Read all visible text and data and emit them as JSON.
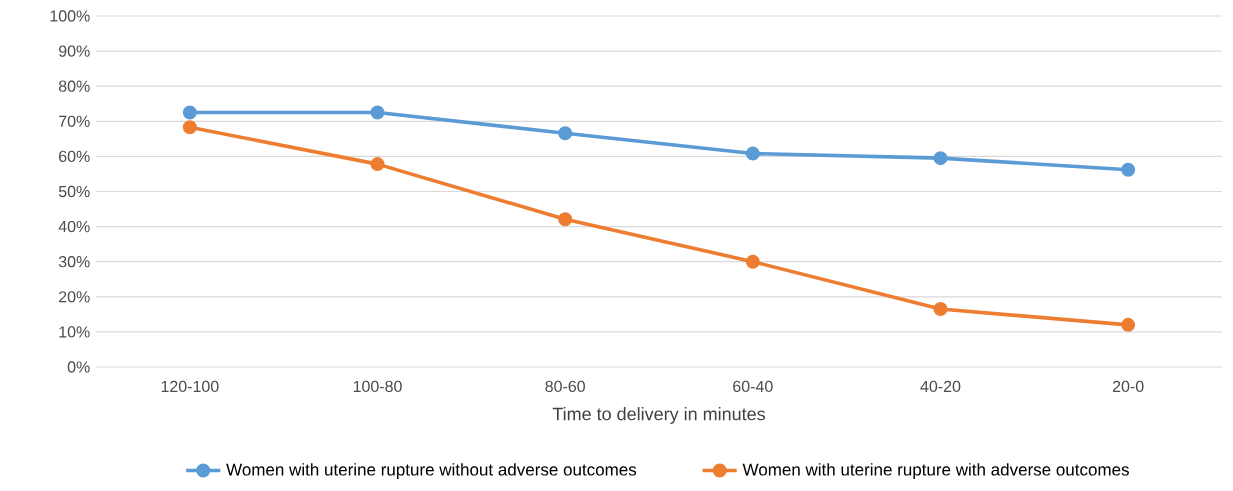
{
  "chart_data": {
    "type": "line",
    "xlabel": "Time to delivery in minutes",
    "categories": [
      "120-100",
      "100-80",
      "80-60",
      "60-40",
      "40-20",
      "20-0"
    ],
    "series": [
      {
        "name": "Women with uterine rupture without adverse outcomes",
        "color": "#5b9bd5",
        "values": [
          72.5,
          72.5,
          66.6,
          60.8,
          59.5,
          56.2
        ]
      },
      {
        "name": "Women with uterine rupture with adverse outcomes",
        "color": "#ed7d31",
        "values": [
          68.3,
          57.8,
          42.1,
          30,
          16.5,
          12
        ]
      }
    ],
    "ylim": [
      0,
      100
    ],
    "yticks": [
      {
        "value": 0,
        "label": "0%"
      },
      {
        "value": 10,
        "label": "10%"
      },
      {
        "value": 20,
        "label": "20%"
      },
      {
        "value": 30,
        "label": "30%"
      },
      {
        "value": 40,
        "label": "40%"
      },
      {
        "value": 50,
        "label": "50%"
      },
      {
        "value": 60,
        "label": "60%"
      },
      {
        "value": 70,
        "label": "70%"
      },
      {
        "value": 80,
        "label": "80%"
      },
      {
        "value": 90,
        "label": "90%"
      },
      {
        "value": 100,
        "label": "100%"
      }
    ],
    "grid": "y",
    "legend": "bottom",
    "marker": "circle",
    "line_style": "solid"
  }
}
